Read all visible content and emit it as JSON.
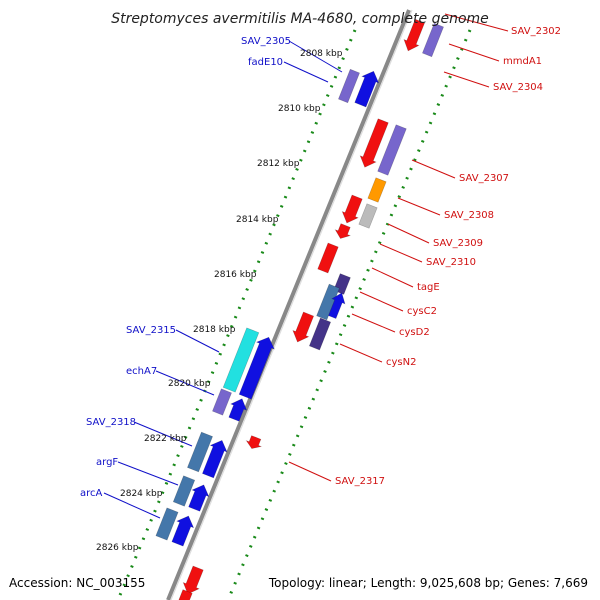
{
  "title": "Streptomyces avermitilis MA-4680, complete genome",
  "accession": "Accession: NC_003155",
  "topology": "Topology: linear; Length: 9,025,608 bp; Genes: 7,669",
  "ticks": [
    "2808 kbp",
    "2810 kbp",
    "2812 kbp",
    "2814 kbp",
    "2816 kbp",
    "2818 kbp",
    "2820 kbp",
    "2822 kbp",
    "2824 kbp",
    "2826 kbp"
  ],
  "genes_left": [
    "SAV_2305",
    "fadE10",
    "SAV_2315",
    "echA7",
    "SAV_2318",
    "argF",
    "arcA"
  ],
  "genes_right": [
    "SAV_2302",
    "mmdA1",
    "SAV_2304",
    "SAV_2307",
    "SAV_2308",
    "SAV_2309",
    "SAV_2310",
    "tagE",
    "cysC2",
    "cysD2",
    "cysN2",
    "SAV_2317"
  ],
  "colors": {
    "backbone": "#888888",
    "tick_dots": "#1a8a1a",
    "forward_label": "#1010c8",
    "reverse_label": "#d01010",
    "blue": "#1010e0",
    "red": "#f01010",
    "lavender": "#7766cc",
    "steel": "#4477aa",
    "cyan": "#22e0e0",
    "orange": "#ff9900",
    "gray": "#bbbbbb",
    "dark_slate": "#443388"
  }
}
